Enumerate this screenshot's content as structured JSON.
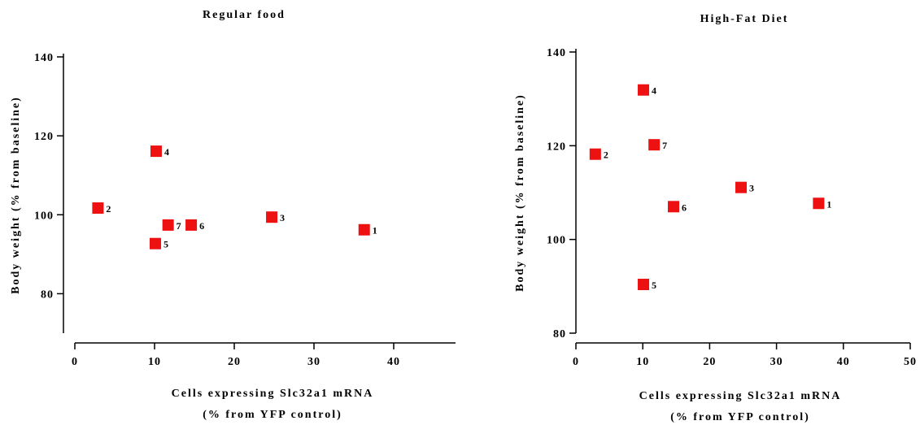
{
  "chart_data": [
    {
      "type": "scatter",
      "title": "Regular food",
      "xlabel": [
        "Cells expressing Slc32a1 mRNA",
        "(% from YFP control)"
      ],
      "ylabel": "Body weight (% from baseline)",
      "xlim": [
        0,
        50
      ],
      "ylim": [
        70,
        140
      ],
      "xticks": [
        0,
        10,
        20,
        30,
        40,
        50
      ],
      "yticks": [
        80,
        100,
        120,
        140
      ],
      "grid": false,
      "marker_color": "#ee1111",
      "points": [
        {
          "label": "1",
          "x": 36.3,
          "y": 96.2
        },
        {
          "label": "2",
          "x": 2.9,
          "y": 101.7
        },
        {
          "label": "3",
          "x": 24.7,
          "y": 99.4
        },
        {
          "label": "4",
          "x": 10.2,
          "y": 116.1
        },
        {
          "label": "5",
          "x": 10.1,
          "y": 92.7
        },
        {
          "label": "6",
          "x": 14.6,
          "y": 97.4
        },
        {
          "label": "7",
          "x": 11.7,
          "y": 97.4
        }
      ]
    },
    {
      "type": "scatter",
      "title": "High-Fat Diet",
      "xlabel": [
        "Cells expressing Slc32a1 mRNA",
        "(% from YFP control)"
      ],
      "ylabel": "Body weight (% from baseline)",
      "xlim": [
        0,
        50
      ],
      "ylim": [
        80,
        140
      ],
      "xticks": [
        0,
        10,
        20,
        30,
        40,
        50
      ],
      "yticks": [
        80,
        100,
        120,
        140
      ],
      "grid": false,
      "marker_color": "#ee1111",
      "points": [
        {
          "label": "1",
          "x": 36.3,
          "y": 107.7
        },
        {
          "label": "2",
          "x": 2.9,
          "y": 118.2
        },
        {
          "label": "3",
          "x": 24.7,
          "y": 111.1
        },
        {
          "label": "4",
          "x": 10.1,
          "y": 131.9
        },
        {
          "label": "5",
          "x": 10.1,
          "y": 90.4
        },
        {
          "label": "6",
          "x": 14.6,
          "y": 107.0
        },
        {
          "label": "7",
          "x": 11.7,
          "y": 120.2
        }
      ]
    }
  ]
}
